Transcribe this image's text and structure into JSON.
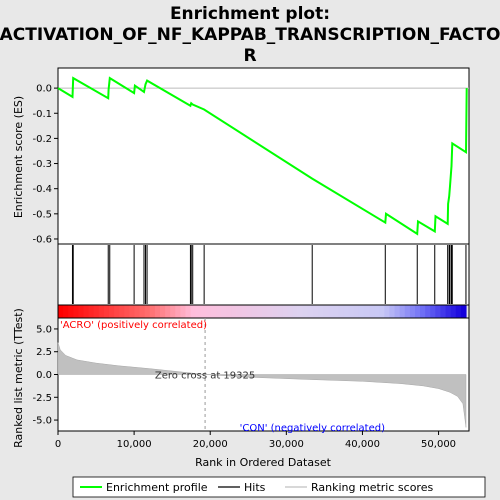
{
  "chart_data": {
    "type": "line",
    "title_lines": [
      "Enrichment plot:",
      "ACTIVATION_OF_NF_KAPPAB_TRANSCRIPTION_FACTO",
      "R"
    ],
    "xlabel": "Rank in Ordered Dataset",
    "xlim": [
      0,
      54000
    ],
    "x_ticks": [
      0,
      10000,
      20000,
      30000,
      40000,
      50000
    ],
    "x_tick_labels": [
      "0",
      "10,000",
      "20,000",
      "30,000",
      "40,000",
      "50,000"
    ],
    "es_panel": {
      "ylabel": "Enrichment score (ES)",
      "ylim": [
        -0.62,
        0.08
      ],
      "y_ticks": [
        0.0,
        -0.1,
        -0.2,
        -0.3,
        -0.4,
        -0.5,
        -0.6
      ],
      "y_tick_labels": [
        "0.0",
        "-0.1",
        "-0.2",
        "-0.3",
        "-0.4",
        "-0.5",
        "-0.6"
      ],
      "series": [
        {
          "name": "Enrichment profile",
          "color": "#00ff00",
          "x": [
            0,
            1900,
            2000,
            6600,
            6650,
            6800,
            10000,
            10100,
            11300,
            11500,
            11700,
            17400,
            17500,
            17700,
            19200,
            33400,
            43000,
            43100,
            47200,
            47300,
            49500,
            49600,
            51200,
            51250,
            51400,
            51500,
            51700,
            51800,
            53600,
            53700
          ],
          "y": [
            0.0,
            -0.035,
            0.04,
            -0.04,
            -0.005,
            0.04,
            -0.02,
            0.01,
            -0.015,
            0.015,
            0.03,
            -0.07,
            -0.06,
            -0.065,
            -0.085,
            -0.36,
            -0.535,
            -0.5,
            -0.58,
            -0.53,
            -0.57,
            -0.51,
            -0.54,
            -0.46,
            -0.43,
            -0.39,
            -0.31,
            -0.22,
            -0.255,
            0.0
          ]
        }
      ]
    },
    "hits": [
      1900,
      2000,
      6600,
      6800,
      10000,
      11300,
      11500,
      11700,
      17400,
      17500,
      17700,
      19200,
      33400,
      43000,
      47200,
      49500,
      51200,
      51400,
      51500,
      51700,
      51800,
      53600
    ],
    "ranked_metric": {
      "ylabel": "Ranked list metric (TTest)",
      "ylim": [
        -6.2,
        6.2
      ],
      "y_ticks": [
        5.0,
        2.5,
        0.0,
        -2.5,
        -5.0
      ],
      "y_tick_labels": [
        "5.0",
        "2.5",
        "0.0",
        "-2.5",
        "-5.0"
      ],
      "color": "#c0c0c0",
      "x": [
        0,
        300,
        1000,
        2500,
        5000,
        8000,
        12000,
        16000,
        19325,
        25000,
        33000,
        40000,
        45000,
        48000,
        50000,
        51500,
        52500,
        53200,
        53600
      ],
      "y": [
        3.5,
        2.7,
        2.1,
        1.6,
        1.25,
        0.95,
        0.65,
        0.3,
        0.0,
        -0.3,
        -0.55,
        -0.75,
        -1.0,
        -1.25,
        -1.55,
        -1.95,
        -2.4,
        -3.2,
        -5.8
      ]
    },
    "zero_cross_label": "Zero cross at 19325",
    "zero_cross": 19325,
    "pos_label": "'ACRO' (positively correlated)",
    "neg_label": "'CON' (negatively correlated)",
    "pos_color": "#ff0000",
    "neg_color": "#0000ff",
    "legend": [
      {
        "label": "Enrichment profile",
        "color": "#00ff00",
        "kind": "line"
      },
      {
        "label": "Hits",
        "color": "#000000",
        "kind": "line"
      },
      {
        "label": "Ranking metric scores",
        "color": "#c0c0c0",
        "kind": "line"
      }
    ]
  }
}
